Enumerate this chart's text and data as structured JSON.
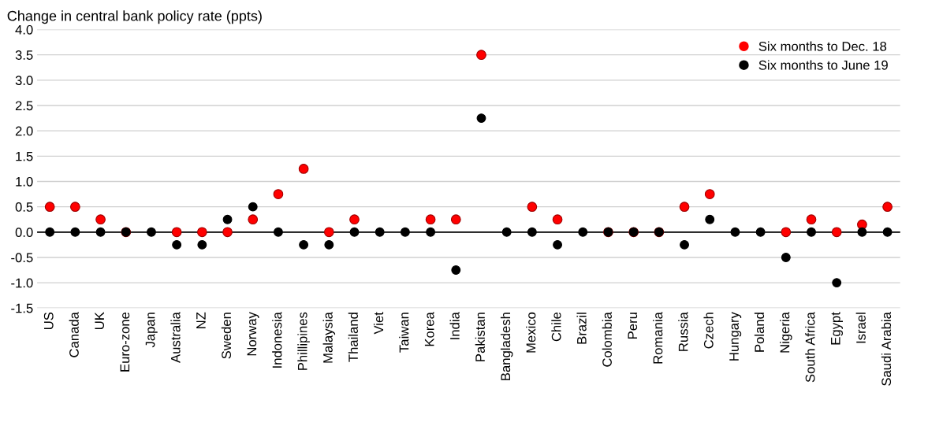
{
  "chart_data": {
    "type": "scatter",
    "title": "Change in central bank policy rate (ppts)",
    "categories": [
      "US",
      "Canada",
      "UK",
      "Euro-zone",
      "Japan",
      "Australia",
      "NZ",
      "Sweden",
      "Norway",
      "Indonesia",
      "Phillipines",
      "Malaysia",
      "Thailand",
      "Viet",
      "Taiwan",
      "Korea",
      "India",
      "Pakistan",
      "Bangladesh",
      "Mexico",
      "Chile",
      "Brazil",
      "Colombia",
      "Peru",
      "Romania",
      "Russia",
      "Czech",
      "Hungary",
      "Poland",
      "Nigeria",
      "South Africa",
      "Egypt",
      "Israel",
      "Saudi Arabia"
    ],
    "series": [
      {
        "name": "Six months to Dec. 18",
        "color": "#ff0000",
        "values": [
          0.5,
          0.5,
          0.25,
          0,
          null,
          0,
          0,
          0,
          0.25,
          0.75,
          1.25,
          0,
          0.25,
          null,
          null,
          0.25,
          0.25,
          3.5,
          null,
          0.5,
          0.25,
          null,
          0,
          0,
          0,
          0.5,
          0.75,
          null,
          null,
          0,
          0.25,
          0,
          0.15,
          0.5
        ]
      },
      {
        "name": "Six months to June 19",
        "color": "#000000",
        "values": [
          0,
          0,
          0,
          0,
          0,
          -0.25,
          -0.25,
          0.25,
          0.5,
          0,
          -0.25,
          -0.25,
          0,
          0,
          0,
          0,
          -0.75,
          2.25,
          0,
          0,
          -0.25,
          0,
          0,
          0,
          0,
          -0.25,
          0.25,
          0,
          0,
          -0.5,
          0,
          -1.0,
          0,
          0
        ]
      }
    ],
    "ylim": [
      -1.5,
      4.0
    ],
    "yticks": [
      {
        "value": -1.5,
        "label": "-1.5"
      },
      {
        "value": -1.0,
        "label": "-1.0"
      },
      {
        "value": -0.5,
        "label": "-0.5"
      },
      {
        "value": 0,
        "label": "0.0"
      },
      {
        "value": 0.5,
        "label": "0.5"
      },
      {
        "value": 1.0,
        "label": "1.0"
      },
      {
        "value": 1.5,
        "label": "1.5"
      },
      {
        "value": 2.0,
        "label": "2.0"
      },
      {
        "value": 2.5,
        "label": "2.5"
      },
      {
        "value": 3.0,
        "label": "3.0"
      },
      {
        "value": 3.5,
        "label": "3.5"
      },
      {
        "value": 4.0,
        "label": "4.0"
      }
    ],
    "ref_lines": [
      {
        "axis": "y",
        "value": 0,
        "color": "#000000"
      }
    ],
    "grid": "y",
    "legend": "top right",
    "marker": "circle"
  }
}
